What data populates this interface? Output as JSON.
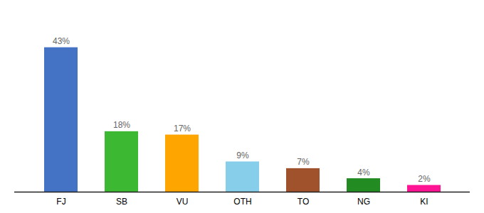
{
  "chart_data": {
    "type": "bar",
    "categories": [
      "FJ",
      "SB",
      "VU",
      "OTH",
      "TO",
      "NG",
      "KI"
    ],
    "values": [
      43,
      18,
      17,
      9,
      7,
      4,
      2
    ],
    "value_labels": [
      "43%",
      "18%",
      "17%",
      "9%",
      "7%",
      "4%",
      "2%"
    ],
    "colors": [
      "#4472c4",
      "#3cb832",
      "#ffa500",
      "#87ceeb",
      "#a0522d",
      "#228b22",
      "#ff1493"
    ],
    "ylim": [
      0,
      52
    ],
    "grid": false,
    "data_labels": true,
    "tick_labels": "x"
  }
}
